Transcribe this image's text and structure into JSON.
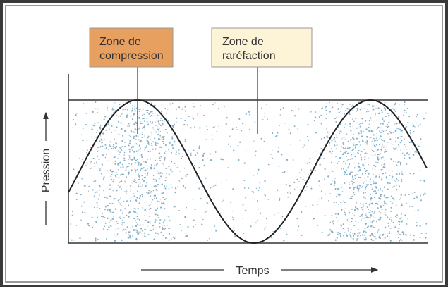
{
  "labels": [
    {
      "lines": [
        "Zone de",
        "compression"
      ]
    },
    {
      "lines": [
        "Zone de",
        "raréfaction"
      ]
    }
  ],
  "axes": {
    "y": "Pression",
    "x": "Temps"
  }
}
